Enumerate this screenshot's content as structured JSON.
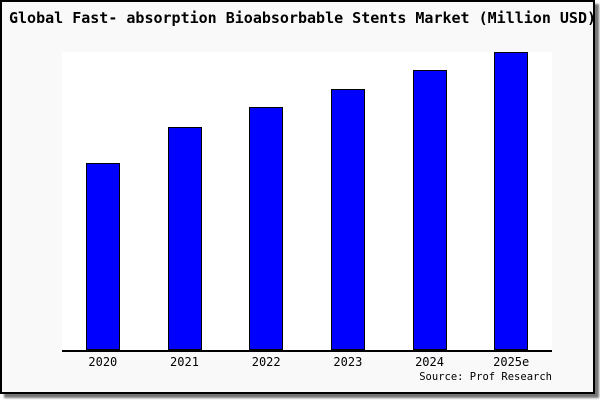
{
  "chart_data": {
    "type": "bar",
    "title": "Global Fast- absorption Bioabsorbable Stents Market (Million USD)",
    "categories": [
      "2020",
      "2021",
      "2022",
      "2023",
      "2024",
      "2025e"
    ],
    "values_percent_of_max": [
      62.7,
      75.0,
      81.4,
      87.7,
      93.8,
      100.0
    ],
    "unit": "Million USD",
    "xlabel": "",
    "ylabel": "",
    "y_axis_ticks_shown": false,
    "value_labels_shown": false,
    "grid": false,
    "legend": "none",
    "source": "Source: Prof Research",
    "colors": {
      "bar_fill": "#0000ff",
      "bar_border": "#000000",
      "plot_background": "#ffffff",
      "figure_background": "#f9f9f9",
      "figure_border": "#000000",
      "text": "#000000"
    }
  }
}
